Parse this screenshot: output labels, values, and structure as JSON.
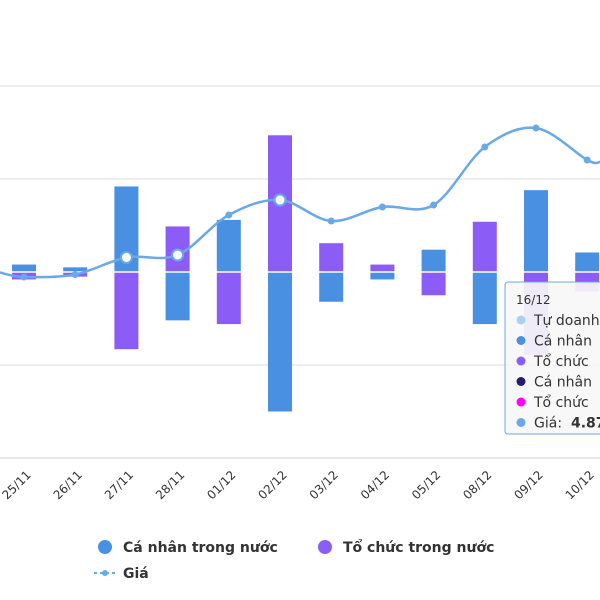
{
  "chart_data": {
    "type": "bar",
    "categories": [
      "25/11",
      "26/11",
      "27/11",
      "28/11",
      "01/12",
      "02/12",
      "03/12",
      "04/12",
      "05/12",
      "08/12",
      "09/12",
      "10/12"
    ],
    "ylim": [
      -200,
      200
    ],
    "series": [
      {
        "name": "Cá nhân trong nước",
        "type": "bar",
        "color": "#4a90e2",
        "values": [
          8,
          5,
          92,
          -52,
          56,
          -150,
          -32,
          -8,
          24,
          -56,
          88,
          21
        ]
      },
      {
        "name": "Tổ chức trong nước",
        "type": "bar",
        "color": "#8b5cf6",
        "values": [
          -8,
          -5,
          -83,
          49,
          -56,
          147,
          31,
          8,
          -25,
          54,
          -89,
          -21
        ]
      },
      {
        "name": "Giá",
        "type": "line",
        "color": "#6aa8e8",
        "values": [
          4.1,
          4.35,
          6.05,
          6.3,
          10.3,
          11.8,
          9.7,
          11.1,
          11.3,
          17.1,
          19.0,
          15.8
        ]
      }
    ],
    "price_range": [
      0,
      30
    ],
    "tooltip": {
      "title": "16/12",
      "items": [
        {
          "label": "Tự doanh",
          "color": "#a9cff2"
        },
        {
          "label": "Cá nhân",
          "color": "#4a90e2"
        },
        {
          "label": "Tổ chức",
          "color": "#8b5cf6"
        },
        {
          "label": "Cá nhân",
          "color": "#2a1a6e"
        },
        {
          "label": "Tổ chức",
          "color": "#ff00ff"
        },
        {
          "label": "Giá:",
          "value": "4.87",
          "color": "#6aa8e8"
        }
      ]
    },
    "legend": [
      {
        "label": "Cá nhân trong nước",
        "color": "#4a90e2",
        "shape": "circle"
      },
      {
        "label": "Tổ chức trong nước",
        "color": "#8b5cf6",
        "shape": "circle"
      },
      {
        "label": "Giá",
        "color": "#6aa8e8",
        "shape": "line"
      }
    ]
  }
}
